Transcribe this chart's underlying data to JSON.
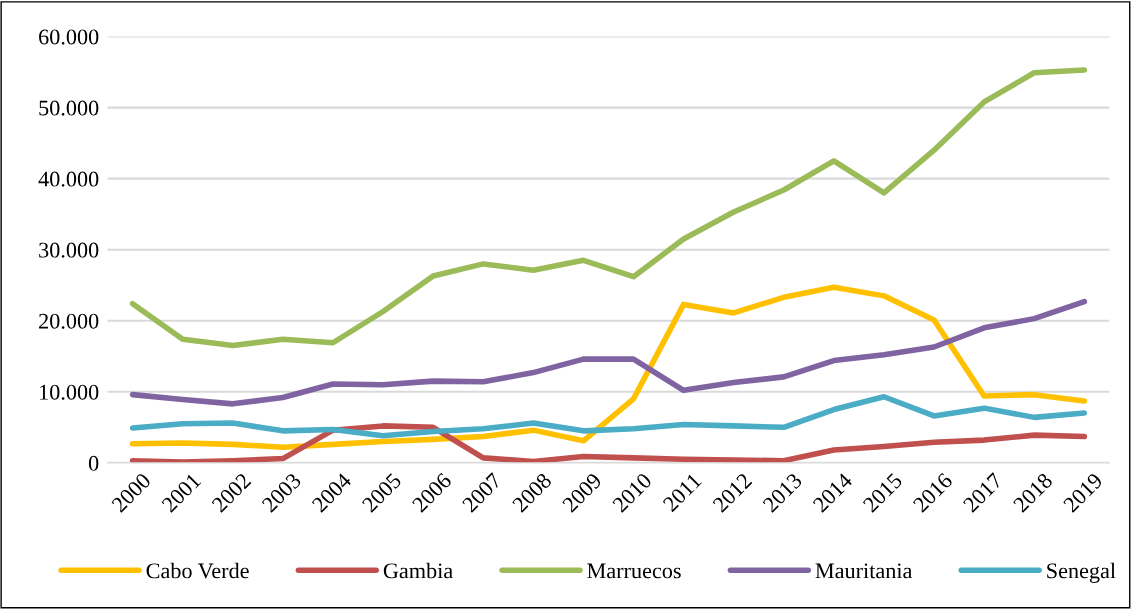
{
  "chart_data": {
    "type": "line",
    "categories": [
      "2000",
      "2001",
      "2002",
      "2003",
      "2004",
      "2005",
      "2006",
      "2007",
      "2008",
      "2009",
      "2010",
      "2011",
      "2012",
      "2013",
      "2014",
      "2015",
      "2016",
      "2017",
      "2018",
      "2019"
    ],
    "series": [
      {
        "name": "Cabo Verde",
        "color": "#ffc000",
        "values": [
          2700,
          2800,
          2600,
          2200,
          2600,
          3000,
          3300,
          3700,
          4600,
          3100,
          9000,
          22300,
          21100,
          23300,
          24700,
          23500,
          20100,
          9400,
          9600,
          8700
        ]
      },
      {
        "name": "Gambia",
        "color": "#c0504d",
        "values": [
          300,
          100,
          300,
          600,
          4600,
          5200,
          5000,
          700,
          200,
          900,
          700,
          500,
          400,
          300,
          1800,
          2300,
          2900,
          3200,
          3900,
          3700
        ]
      },
      {
        "name": "Marruecos",
        "color": "#9bbb59",
        "values": [
          22400,
          17400,
          16500,
          17400,
          16900,
          21300,
          26300,
          28000,
          27100,
          28500,
          26200,
          31500,
          35300,
          38400,
          42500,
          38000,
          44000,
          50800,
          54900,
          55300
        ]
      },
      {
        "name": "Mauritania",
        "color": "#8064a2",
        "values": [
          9600,
          8900,
          8300,
          9200,
          11100,
          11000,
          11500,
          11400,
          12700,
          14600,
          14600,
          10200,
          11300,
          12100,
          14400,
          15200,
          16300,
          19000,
          20300,
          22700
        ]
      },
      {
        "name": "Senegal",
        "color": "#4bacc6",
        "values": [
          4900,
          5500,
          5600,
          4500,
          4700,
          3800,
          4400,
          4800,
          5600,
          4500,
          4800,
          5400,
          5200,
          5000,
          7500,
          9300,
          6600,
          7700,
          6400,
          7000
        ]
      }
    ],
    "ylim": [
      0,
      60000
    ],
    "yticks": [
      {
        "value": 0,
        "label": "0"
      },
      {
        "value": 10000,
        "label": "10.000"
      },
      {
        "value": 20000,
        "label": "20.000"
      },
      {
        "value": 30000,
        "label": "30.000"
      },
      {
        "value": 40000,
        "label": "40.000"
      },
      {
        "value": 50000,
        "label": "50.000"
      },
      {
        "value": 60000,
        "label": "60.000"
      }
    ],
    "grid": "y",
    "legend": "bottom",
    "marker": "none",
    "line_style": "solid"
  }
}
